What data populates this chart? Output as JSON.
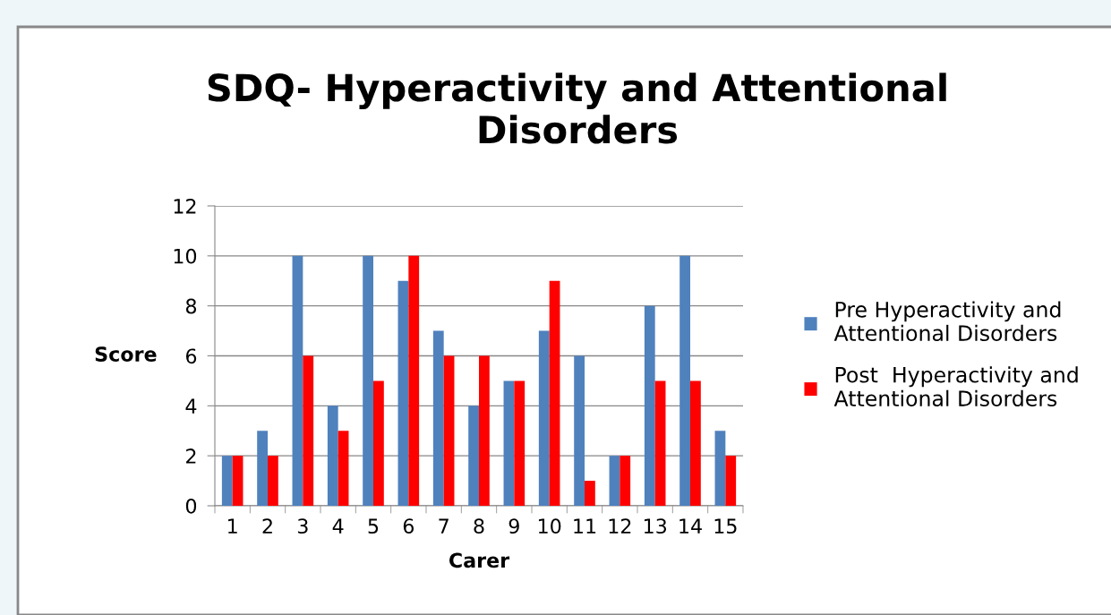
{
  "chart_data": {
    "type": "bar",
    "title": "SDQ- Hyperactivity and Attentional\nDisorders",
    "xlabel": "Carer",
    "ylabel": "Score",
    "categories": [
      "1",
      "2",
      "3",
      "4",
      "5",
      "6",
      "7",
      "8",
      "9",
      "10",
      "11",
      "12",
      "13",
      "14",
      "15"
    ],
    "series": [
      {
        "name": "Pre Hyperactivity and\nAttentional Disorders",
        "color": "#4f81bd",
        "values": [
          2,
          3,
          10,
          4,
          10,
          9,
          7,
          4,
          5,
          7,
          6,
          2,
          8,
          10,
          3
        ]
      },
      {
        "name": "Post  Hyperactivity and\nAttentional Disorders",
        "color": "#ff0000",
        "values": [
          2,
          2,
          6,
          3,
          5,
          10,
          6,
          6,
          5,
          9,
          1,
          2,
          5,
          5,
          2
        ]
      }
    ],
    "ylim": [
      0,
      12
    ],
    "yticks": [
      0,
      2,
      4,
      6,
      8,
      10,
      12
    ],
    "grid": "y",
    "legend": "right"
  }
}
